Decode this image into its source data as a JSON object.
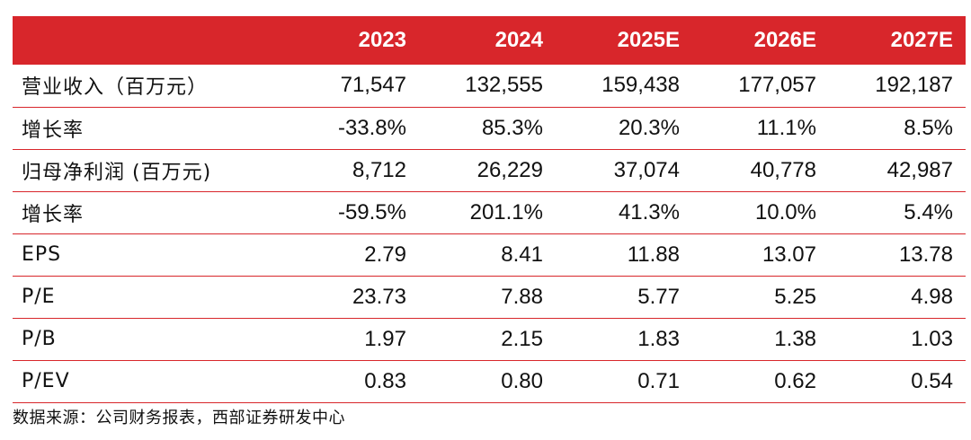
{
  "table": {
    "headers": [
      "",
      "2023",
      "2024",
      "2025E",
      "2026E",
      "2027E"
    ],
    "rows": [
      {
        "label": "营业收入（百万元）",
        "values": [
          "71,547",
          "132,555",
          "159,438",
          "177,057",
          "192,187"
        ]
      },
      {
        "label": "增长率",
        "values": [
          "-33.8%",
          "85.3%",
          "20.3%",
          "11.1%",
          "8.5%"
        ]
      },
      {
        "label": "归母净利润 (百万元)",
        "values": [
          "8,712",
          "26,229",
          "37,074",
          "40,778",
          "42,987"
        ]
      },
      {
        "label": "增长率",
        "values": [
          "-59.5%",
          "201.1%",
          "41.3%",
          "10.0%",
          "5.4%"
        ]
      },
      {
        "label": "EPS",
        "values": [
          "2.79",
          "8.41",
          "11.88",
          "13.07",
          "13.78"
        ]
      },
      {
        "label": "P/E",
        "values": [
          "23.73",
          "7.88",
          "5.77",
          "5.25",
          "4.98"
        ]
      },
      {
        "label": "P/B",
        "values": [
          "1.97",
          "2.15",
          "1.83",
          "1.38",
          "1.03"
        ]
      },
      {
        "label": "P/EV",
        "values": [
          "0.83",
          "0.80",
          "0.71",
          "0.62",
          "0.54"
        ]
      }
    ]
  },
  "source": "数据来源：公司财务报表，西部证券研发中心",
  "colors": {
    "header_bg": "#d8262b",
    "header_text": "#ffffff",
    "divider": "#d8262b"
  }
}
